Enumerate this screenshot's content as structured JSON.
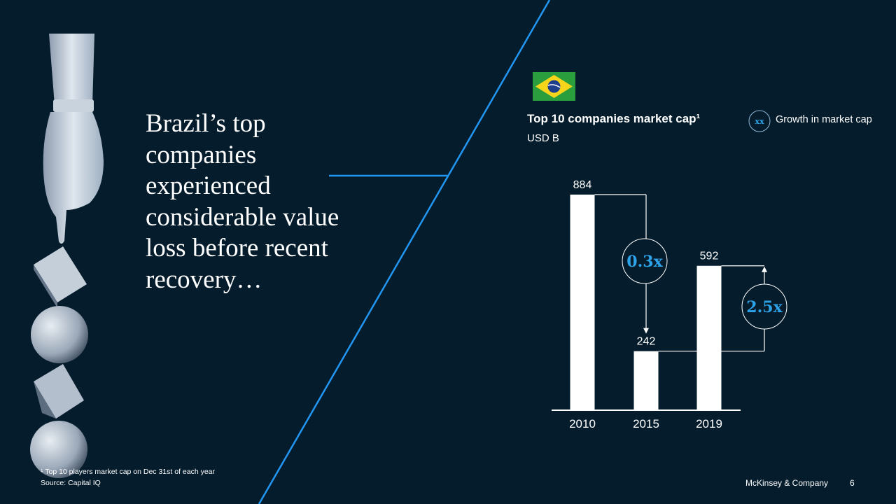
{
  "slide": {
    "title": "Brazil’s top companies experienced considerable value loss before recent recovery…",
    "footnote": "¹ Top 10 players market cap on Dec 31st of each year",
    "source": "Source: Capital IQ",
    "brand": "McKinsey & Company",
    "page_number": "6"
  },
  "chart": {
    "flag_country": "Brazil"
  },
  "legend": {
    "symbol_text": "xx",
    "label": "Growth in market cap"
  },
  "colors": {
    "background": "#051c2c",
    "accent": "#2da3e8",
    "bar": "#ffffff"
  },
  "chart_data": {
    "type": "bar",
    "title": "Top 10 companies market cap¹",
    "subtitle": "USD B",
    "categories": [
      "2010",
      "2015",
      "2019"
    ],
    "values": [
      884,
      242,
      592
    ],
    "annotations": [
      {
        "from": "2010",
        "to": "2015",
        "label": "0.3x"
      },
      {
        "from": "2015",
        "to": "2019",
        "label": "2.5x"
      }
    ]
  }
}
